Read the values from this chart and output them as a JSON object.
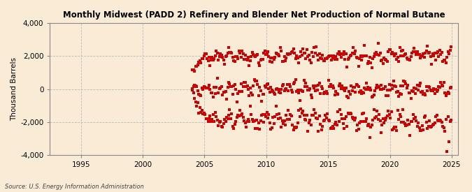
{
  "title": "Monthly Midwest (PADD 2) Refinery and Blender Net Production of Normal Butane",
  "ylabel": "Thousand Barrels",
  "source": "Source: U.S. Energy Information Administration",
  "background_color": "#faebd7",
  "dot_color": "#cc0000",
  "ylim": [
    -4000,
    4000
  ],
  "xlim_start": 1992.5,
  "xlim_end": 2025.5,
  "yticks": [
    -4000,
    -2000,
    0,
    2000,
    4000
  ],
  "xticks": [
    1995,
    2000,
    2005,
    2010,
    2015,
    2020,
    2025
  ],
  "marker_size": 12
}
